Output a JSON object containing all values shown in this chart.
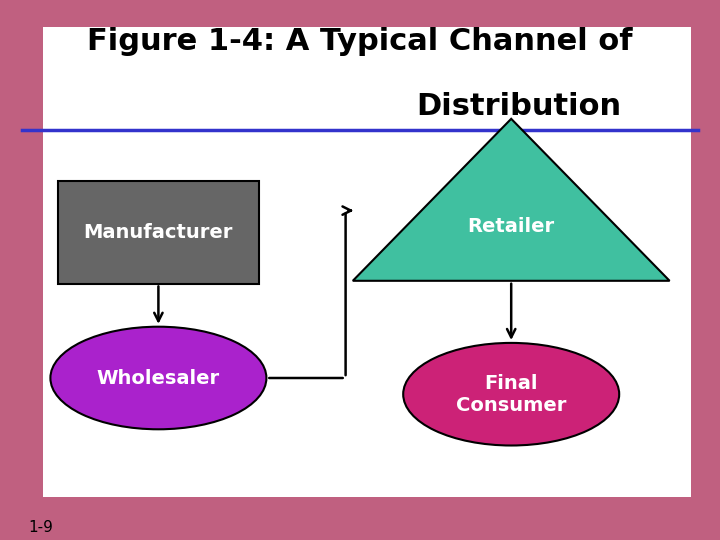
{
  "title_line1": "Figure 1-4: A Typical Channel of",
  "title_line2": "Distribution",
  "title_fontsize": 22,
  "title_color": "#000000",
  "underline_color": "#3333cc",
  "bg_outer_color": "#c06080",
  "manufacturer_label": "Manufacturer",
  "manufacturer_color": "#666666",
  "manufacturer_text_color": "#ffffff",
  "retailer_label": "Retailer",
  "retailer_color": "#40c0a0",
  "retailer_text_color": "#ffffff",
  "wholesaler_label": "Wholesaler",
  "wholesaler_color": "#aa22cc",
  "wholesaler_text_color": "#ffffff",
  "final_consumer_label": "Final\nConsumer",
  "final_consumer_color": "#cc2277",
  "final_consumer_text_color": "#ffffff",
  "arrow_color": "#000000",
  "label_fontsize": 14,
  "footnote": "1-9",
  "footnote_fontsize": 11
}
